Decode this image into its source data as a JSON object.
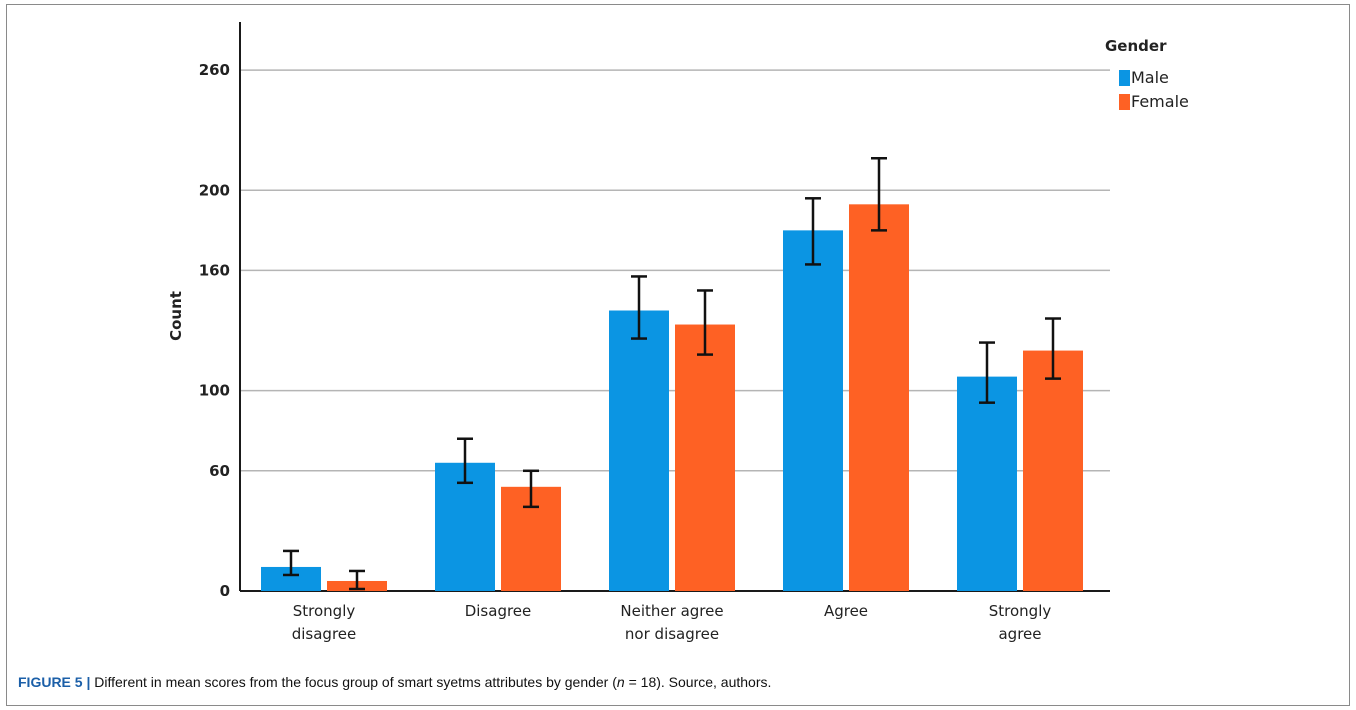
{
  "chart_data": {
    "type": "bar",
    "categories": [
      [
        "Strongly",
        "disagree"
      ],
      [
        "Disagree"
      ],
      [
        "Neither agree",
        "nor disagree"
      ],
      [
        "Agree"
      ],
      [
        "Strongly",
        "agree"
      ]
    ],
    "series": [
      {
        "name": "Male",
        "color": "#0b95e3",
        "values": [
          12,
          64,
          140,
          180,
          107
        ],
        "err_low": [
          8,
          54,
          126,
          163,
          94
        ],
        "err_high": [
          20,
          76,
          157,
          196,
          124
        ]
      },
      {
        "name": "Female",
        "color": "#fe6124",
        "values": [
          5,
          52,
          133,
          193,
          120
        ],
        "err_low": [
          1,
          42,
          118,
          180,
          106
        ],
        "err_high": [
          10,
          60,
          150,
          216,
          136
        ]
      }
    ],
    "ylabel": "Count",
    "yticks": [
      0,
      60,
      100,
      160,
      200,
      260
    ],
    "ylim": [
      0,
      284
    ],
    "legend_title": "Gender",
    "legend_position": "top-right",
    "grid": true
  },
  "caption": {
    "label": "FIGURE 5 |",
    "text_before": " Different in mean scores from the focus group of smart syetms attributes by gender (",
    "italic": "n",
    "text_after": " = 18). Source, authors."
  }
}
